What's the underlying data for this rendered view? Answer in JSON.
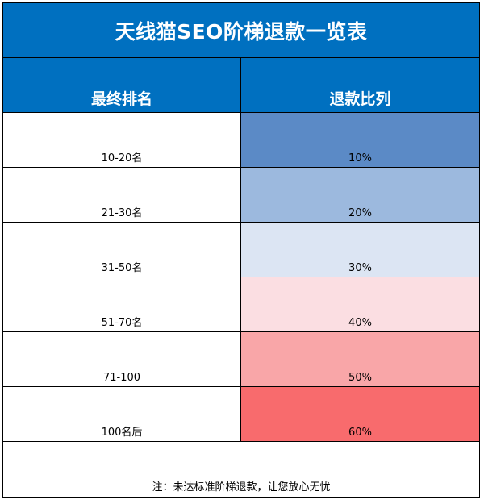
{
  "title": "天线猫SEO阶梯退款一览表",
  "headers": {
    "rank": "最终排名",
    "refund": "退款比列"
  },
  "rows": [
    {
      "rank": "10-20名",
      "refund": "10%",
      "color": "#5b8ac6"
    },
    {
      "rank": "21-30名",
      "refund": "20%",
      "color": "#9cb9de"
    },
    {
      "rank": "31-50名",
      "refund": "30%",
      "color": "#dce5f3"
    },
    {
      "rank": "51-70名",
      "refund": "40%",
      "color": "#fbdee2"
    },
    {
      "rank": "71-100",
      "refund": "50%",
      "color": "#f9a6a8"
    },
    {
      "rank": "100名后",
      "refund": "60%",
      "color": "#f86b6d"
    }
  ],
  "note": "注：未达标准阶梯退款，让您放心无忧"
}
